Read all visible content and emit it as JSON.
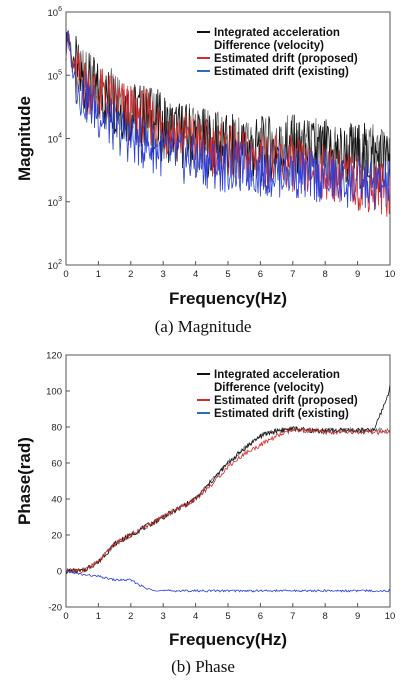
{
  "colors": {
    "integrated": "#111111",
    "difference": "#111111",
    "proposed": "#d42a2a",
    "existing": "#2a3fd8",
    "existing_legend": "#2a6fb5",
    "axis": "#555555"
  },
  "chart_data": [
    {
      "type": "line",
      "caption": "(a) Magnitude",
      "xlabel": "Frequency(Hz)",
      "ylabel": "Magnitude",
      "y_scale": "log",
      "xlim": [
        0,
        10
      ],
      "ylim": [
        100,
        1000000
      ],
      "x_ticks": [
        "0",
        "1",
        "2",
        "3",
        "4",
        "5",
        "6",
        "7",
        "8",
        "9",
        "10"
      ],
      "y_ticks": [
        {
          "base": "10",
          "exp": "2",
          "value": 100
        },
        {
          "base": "10",
          "exp": "3",
          "value": 1000
        },
        {
          "base": "10",
          "exp": "4",
          "value": 10000
        },
        {
          "base": "10",
          "exp": "5",
          "value": 100000
        },
        {
          "base": "10",
          "exp": "6",
          "value": 1000000
        }
      ],
      "legend": [
        "Integrated acceleration",
        "Difference (velocity)",
        "Estimated drift (proposed)",
        "Estimated drift (existing)"
      ],
      "legend_position": "top-right",
      "grid": false,
      "series": [
        {
          "name": "Integrated acceleration",
          "color_key": "integrated",
          "x": [
            0,
            0.05,
            0.2,
            0.5,
            1.0,
            1.5,
            2.0,
            2.5,
            3.0,
            3.5,
            4.0,
            4.5,
            5.0,
            5.5,
            6.0,
            6.5,
            7.0,
            7.5,
            8.0,
            8.5,
            9.0,
            9.5,
            10.0
          ],
          "y": [
            250000,
            500000,
            150000,
            80000,
            50000,
            40000,
            25000,
            22000,
            15000,
            12000,
            10000,
            8000,
            7000,
            7000,
            6500,
            7000,
            7000,
            6000,
            6000,
            5500,
            5500,
            5000,
            4000
          ]
        },
        {
          "name": "Difference (velocity)",
          "color_key": "difference",
          "x": [
            0,
            0.05,
            0.2,
            0.5,
            1.0,
            1.5,
            2.0,
            2.5,
            3.0,
            3.5,
            4.0,
            4.5,
            5.0,
            5.5,
            6.0,
            6.5,
            7.0,
            7.5,
            8.0,
            8.5,
            9.0,
            9.5,
            10.0
          ],
          "y": [
            250000,
            500000,
            150000,
            80000,
            50000,
            40000,
            25000,
            22000,
            15000,
            12000,
            10000,
            8000,
            7000,
            7000,
            6500,
            7000,
            7000,
            6000,
            6000,
            5500,
            5500,
            5000,
            4000
          ]
        },
        {
          "name": "Estimated drift (proposed)",
          "color_key": "proposed",
          "x": [
            0,
            0.05,
            0.2,
            0.5,
            1.0,
            1.5,
            2.0,
            2.5,
            3.0,
            3.5,
            4.0,
            4.5,
            5.0,
            5.5,
            6.0,
            6.5,
            7.0,
            7.5,
            8.0,
            8.5,
            9.0,
            9.5,
            10.0
          ],
          "y": [
            250000,
            500000,
            150000,
            80000,
            50000,
            40000,
            25000,
            22000,
            15000,
            12000,
            9000,
            7000,
            6000,
            5000,
            5000,
            4000,
            4000,
            3000,
            3000,
            2500,
            2000,
            1800,
            1500
          ]
        },
        {
          "name": "Estimated drift (existing)",
          "color_key": "existing",
          "x": [
            0,
            0.05,
            0.2,
            0.5,
            1.0,
            1.5,
            2.0,
            2.5,
            3.0,
            3.5,
            4.0,
            4.5,
            5.0,
            5.5,
            6.0,
            6.5,
            7.0,
            7.5,
            8.0,
            8.5,
            9.0,
            9.5,
            10.0
          ],
          "y": [
            250000,
            500000,
            120000,
            50000,
            25000,
            15000,
            10000,
            8000,
            6000,
            5000,
            4500,
            4000,
            3500,
            3500,
            3000,
            3000,
            3000,
            2500,
            2500,
            2000,
            2000,
            1800,
            1800
          ]
        }
      ]
    },
    {
      "type": "line",
      "caption": "(b) Phase",
      "xlabel": "Frequency(Hz)",
      "ylabel": "Phase(rad)",
      "xlim": [
        0,
        10
      ],
      "ylim": [
        -20,
        120
      ],
      "x_ticks": [
        "0",
        "1",
        "2",
        "3",
        "4",
        "5",
        "6",
        "7",
        "8",
        "9",
        "10"
      ],
      "y_ticks": [
        "-20",
        "0",
        "20",
        "40",
        "60",
        "80",
        "100",
        "120"
      ],
      "legend": [
        "Integrated acceleration",
        "Difference (velocity)",
        "Estimated drift (proposed)",
        "Estimated drift (existing)"
      ],
      "legend_position": "top-right",
      "grid": false,
      "series": [
        {
          "name": "Integrated acceleration",
          "color_key": "integrated",
          "x": [
            0,
            0.5,
            1.0,
            1.5,
            2.0,
            2.5,
            3.0,
            3.5,
            4.0,
            4.5,
            5.0,
            5.5,
            6.0,
            6.5,
            7.0,
            7.5,
            8.0,
            8.5,
            9.0,
            9.5,
            9.9,
            10.0
          ],
          "y": [
            0,
            0,
            5,
            15,
            20,
            25,
            30,
            35,
            40,
            50,
            60,
            68,
            75,
            78,
            79,
            78,
            78,
            78,
            78,
            78,
            96,
            102
          ]
        },
        {
          "name": "Difference (velocity)",
          "color_key": "difference",
          "x": [
            0,
            0.5,
            1.0,
            1.5,
            2.0,
            2.5,
            3.0,
            3.5,
            4.0,
            4.5,
            5.0,
            5.5,
            6.0,
            6.5,
            7.0,
            7.5,
            8.0,
            8.5,
            9.0,
            9.5,
            10.0
          ],
          "y": [
            0,
            0,
            5,
            15,
            20,
            25,
            30,
            35,
            40,
            50,
            60,
            68,
            75,
            78,
            79,
            78,
            78,
            78,
            78,
            78,
            78
          ]
        },
        {
          "name": "Estimated drift (proposed)",
          "color_key": "proposed",
          "x": [
            0,
            0.5,
            1.0,
            1.5,
            2.0,
            2.5,
            3.0,
            3.5,
            4.0,
            4.5,
            5.0,
            5.5,
            6.0,
            6.5,
            7.0,
            7.5,
            8.0,
            8.5,
            9.0,
            9.5,
            10.0
          ],
          "y": [
            0,
            0,
            5,
            15,
            20,
            25,
            30,
            35,
            40,
            48,
            58,
            65,
            70,
            75,
            78,
            78,
            77,
            77,
            77,
            77,
            77
          ]
        },
        {
          "name": "Estimated drift (existing)",
          "color_key": "existing",
          "x": [
            0,
            0.5,
            1.0,
            1.5,
            2.0,
            2.5,
            3.0,
            3.5,
            4.0,
            4.5,
            5.0,
            5.5,
            6.0,
            6.5,
            7.0,
            7.5,
            8.0,
            8.5,
            9.0,
            9.5,
            10.0
          ],
          "y": [
            0,
            -2,
            -3,
            -5,
            -5,
            -10,
            -11,
            -11,
            -11,
            -11,
            -11,
            -11,
            -11,
            -11,
            -11,
            -11,
            -11,
            -11,
            -11,
            -11,
            -11
          ]
        }
      ]
    }
  ]
}
